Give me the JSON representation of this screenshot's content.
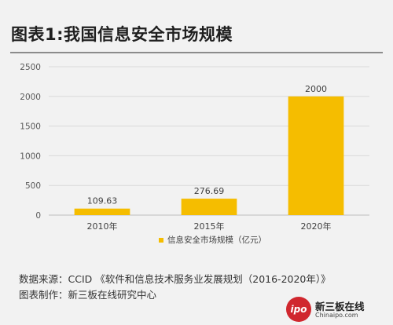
{
  "header": {
    "title": "图表1:我国信息安全市场规模"
  },
  "chart_data": {
    "type": "bar",
    "title": "图表1:我国信息安全市场规模",
    "categories": [
      "2010年",
      "2015年",
      "2020年"
    ],
    "series": [
      {
        "name": "信息安全市场规模（亿元）",
        "values": [
          109.63,
          276.69,
          2000
        ]
      }
    ],
    "data_labels": [
      "109.63",
      "276.69",
      "2000"
    ],
    "y_ticks": [
      0,
      500,
      1000,
      1500,
      2000,
      2500
    ],
    "ylim": [
      0,
      2500
    ],
    "grid": true,
    "legend": "bottom",
    "bar_color": "#f5bd00"
  },
  "footer": {
    "source": "数据来源：CCID 《软件和信息技术服务业发展规划（2016-2020年）》",
    "credit": "图表制作：新三板在线研究中心",
    "logo_mark": "ipo",
    "logo_name": "新三板在线",
    "logo_domain": "Chinaipo.com"
  }
}
